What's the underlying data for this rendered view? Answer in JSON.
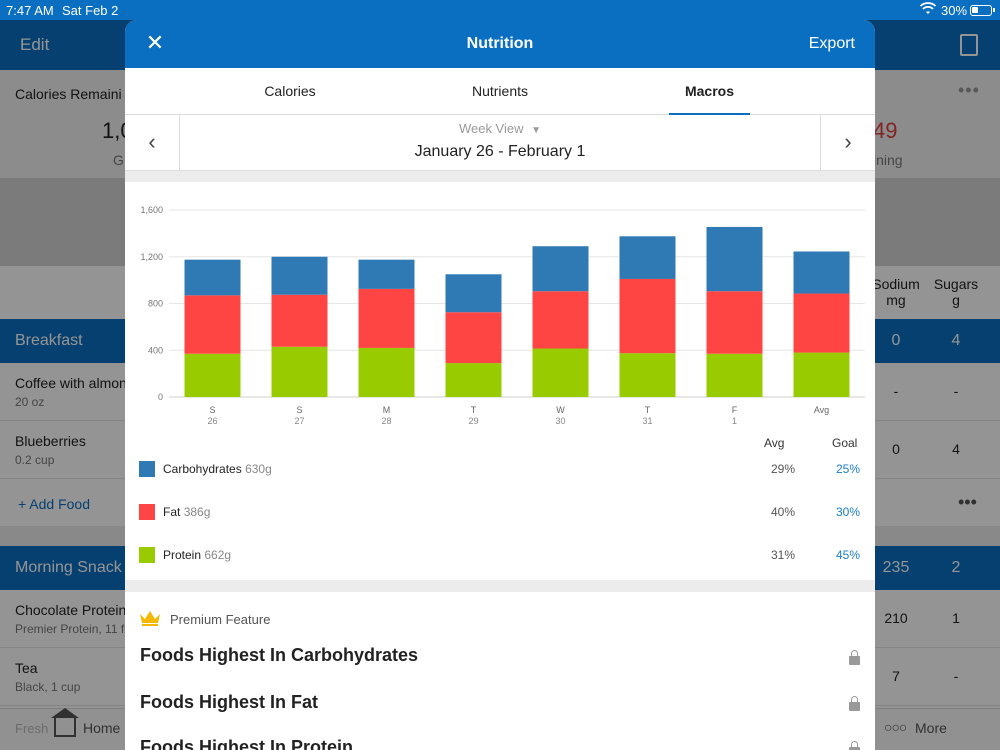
{
  "status_bar": {
    "time": "7:47 AM",
    "date": "Sat Feb 2",
    "battery": "30%"
  },
  "background": {
    "edit_label": "Edit",
    "calories_label": "Calories Remaini",
    "goal_value": "1,0",
    "goal_unit": "G",
    "remaining_value": "49",
    "remaining_label": "ining",
    "columns": [
      {
        "line1": "Sodium",
        "line2": "mg"
      },
      {
        "line1": "Sugars",
        "line2": "g"
      }
    ],
    "breakfast": {
      "name": "Breakfast",
      "v1": "0",
      "v2": "4"
    },
    "breakfast_items": [
      {
        "name": "Coffee with almon",
        "serving": "20 oz",
        "v1": "-",
        "v2": "-"
      },
      {
        "name": "Blueberries",
        "serving": "0.2 cup",
        "v1": "0",
        "v2": "4"
      }
    ],
    "add_food": "+ Add Food",
    "morning_snack": {
      "name": "Morning Snack",
      "v1": "235",
      "v2": "2"
    },
    "snack_items": [
      {
        "name": "Chocolate Protein",
        "serving": "Premier Protein, 11 fl",
        "v1": "210",
        "v2": "1"
      },
      {
        "name": "Tea",
        "serving": "Black, 1 cup",
        "v1": "7",
        "v2": "-"
      }
    ],
    "tabbar": {
      "fresh": "Fresh",
      "home": "Home",
      "more": "More"
    }
  },
  "modal": {
    "title": "Nutrition",
    "export_label": "Export",
    "tabs": [
      {
        "label": "Calories",
        "active": false
      },
      {
        "label": "Nutrients",
        "active": false
      },
      {
        "label": "Macros",
        "active": true
      }
    ],
    "week_view_label": "Week View",
    "date_range": "January 26 - February 1"
  },
  "chart_data": {
    "type": "bar",
    "stacked": true,
    "categories": [
      {
        "day": "S",
        "date": "26"
      },
      {
        "day": "S",
        "date": "27"
      },
      {
        "day": "M",
        "date": "28"
      },
      {
        "day": "T",
        "date": "29"
      },
      {
        "day": "W",
        "date": "30"
      },
      {
        "day": "T",
        "date": "31"
      },
      {
        "day": "F",
        "date": "1"
      },
      {
        "day": "Avg",
        "date": ""
      }
    ],
    "yticks": [
      "0",
      "400",
      "800",
      "1,200",
      "1,600"
    ],
    "ylim": [
      0,
      1600
    ],
    "series": [
      {
        "name": "Protein",
        "color": "#99cc00",
        "values": [
          370,
          430,
          420,
          290,
          415,
          375,
          370,
          380
        ]
      },
      {
        "name": "Fat",
        "color": "#ff4444",
        "values": [
          500,
          445,
          505,
          435,
          490,
          635,
          535,
          505
        ]
      },
      {
        "name": "Carbohydrates",
        "color": "#2f7ab5",
        "values": [
          305,
          325,
          250,
          325,
          385,
          365,
          550,
          360
        ]
      }
    ]
  },
  "macros": {
    "avg_header": "Avg",
    "goal_header": "Goal",
    "rows": [
      {
        "name": "Carbohydrates",
        "grams": "630g",
        "avg": "29%",
        "goal": "25%",
        "color": "#2f7ab5"
      },
      {
        "name": "Fat",
        "grams": "386g",
        "avg": "40%",
        "goal": "30%",
        "color": "#ff4444"
      },
      {
        "name": "Protein",
        "grams": "662g",
        "avg": "31%",
        "goal": "45%",
        "color": "#99cc00"
      }
    ]
  },
  "premium": {
    "label": "Premium Feature",
    "items": [
      "Foods Highest In Carbohydrates",
      "Foods Highest In Fat",
      "Foods Highest In Protein"
    ]
  }
}
